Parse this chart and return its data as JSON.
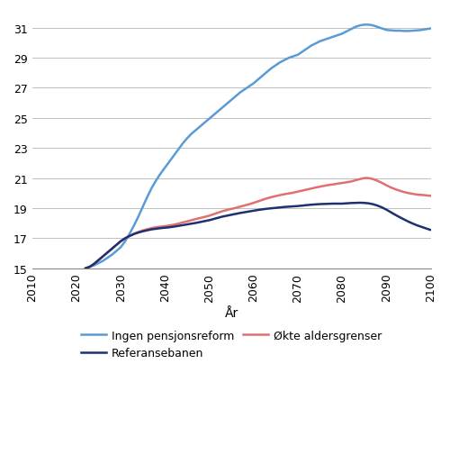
{
  "title": "",
  "xlabel": "År",
  "ylabel": "",
  "xlim": [
    2010,
    2100
  ],
  "ylim": [
    15,
    32
  ],
  "yticks": [
    15,
    17,
    19,
    21,
    23,
    25,
    27,
    29,
    31
  ],
  "xticks": [
    2010,
    2020,
    2030,
    2040,
    2050,
    2060,
    2070,
    2080,
    2090,
    2100
  ],
  "background_color": "#ffffff",
  "grid_color": "#c0c0c0",
  "series": {
    "ingen_pensjonsreform": {
      "label": "Ingen pensjonsreform",
      "color": "#5B9BD5",
      "linewidth": 1.8,
      "x": [
        2022,
        2023,
        2024,
        2025,
        2026,
        2027,
        2028,
        2029,
        2030,
        2031,
        2032,
        2033,
        2034,
        2035,
        2036,
        2037,
        2038,
        2039,
        2040,
        2041,
        2042,
        2043,
        2044,
        2045,
        2046,
        2047,
        2048,
        2049,
        2050,
        2051,
        2052,
        2053,
        2054,
        2055,
        2056,
        2057,
        2058,
        2059,
        2060,
        2061,
        2062,
        2063,
        2064,
        2065,
        2066,
        2067,
        2068,
        2069,
        2070,
        2071,
        2072,
        2073,
        2074,
        2075,
        2076,
        2077,
        2078,
        2079,
        2080,
        2081,
        2082,
        2083,
        2084,
        2085,
        2086,
        2087,
        2088,
        2089,
        2090,
        2091,
        2092,
        2093,
        2094,
        2095,
        2096,
        2097,
        2098,
        2099,
        2100
      ],
      "y": [
        15.0,
        15.1,
        15.2,
        15.35,
        15.5,
        15.7,
        15.9,
        16.15,
        16.4,
        16.8,
        17.3,
        17.85,
        18.45,
        19.1,
        19.75,
        20.35,
        20.85,
        21.3,
        21.7,
        22.1,
        22.5,
        22.9,
        23.3,
        23.65,
        23.95,
        24.2,
        24.45,
        24.7,
        24.95,
        25.2,
        25.45,
        25.7,
        25.95,
        26.2,
        26.45,
        26.7,
        26.9,
        27.1,
        27.3,
        27.55,
        27.8,
        28.05,
        28.3,
        28.5,
        28.7,
        28.85,
        29.0,
        29.1,
        29.2,
        29.4,
        29.6,
        29.8,
        29.95,
        30.1,
        30.2,
        30.3,
        30.4,
        30.5,
        30.6,
        30.75,
        30.9,
        31.05,
        31.15,
        31.2,
        31.2,
        31.15,
        31.05,
        30.95,
        30.85,
        30.82,
        30.8,
        30.8,
        30.78,
        30.78,
        30.8,
        30.82,
        30.85,
        30.9,
        30.95
      ]
    },
    "okte_aldersgrenser": {
      "label": "Økte aldersgrenser",
      "color": "#E07070",
      "linewidth": 1.8,
      "x": [
        2022,
        2023,
        2024,
        2025,
        2026,
        2027,
        2028,
        2029,
        2030,
        2031,
        2032,
        2033,
        2034,
        2035,
        2036,
        2037,
        2038,
        2039,
        2040,
        2041,
        2042,
        2043,
        2044,
        2045,
        2046,
        2047,
        2048,
        2049,
        2050,
        2051,
        2052,
        2053,
        2054,
        2055,
        2056,
        2057,
        2058,
        2059,
        2060,
        2061,
        2062,
        2063,
        2064,
        2065,
        2066,
        2067,
        2068,
        2069,
        2070,
        2071,
        2072,
        2073,
        2074,
        2075,
        2076,
        2077,
        2078,
        2079,
        2080,
        2081,
        2082,
        2083,
        2084,
        2085,
        2086,
        2087,
        2088,
        2089,
        2090,
        2091,
        2092,
        2093,
        2094,
        2095,
        2096,
        2097,
        2098,
        2099,
        2100
      ],
      "y": [
        15.0,
        15.1,
        15.3,
        15.55,
        15.8,
        16.05,
        16.3,
        16.55,
        16.8,
        17.0,
        17.15,
        17.3,
        17.42,
        17.52,
        17.6,
        17.68,
        17.73,
        17.77,
        17.8,
        17.85,
        17.9,
        17.97,
        18.05,
        18.12,
        18.2,
        18.28,
        18.35,
        18.42,
        18.5,
        18.6,
        18.7,
        18.8,
        18.88,
        18.95,
        19.02,
        19.1,
        19.18,
        19.26,
        19.35,
        19.45,
        19.55,
        19.65,
        19.73,
        19.8,
        19.87,
        19.93,
        19.98,
        20.03,
        20.1,
        20.17,
        20.23,
        20.3,
        20.37,
        20.43,
        20.49,
        20.54,
        20.58,
        20.63,
        20.67,
        20.72,
        20.77,
        20.85,
        20.93,
        21.0,
        21.0,
        20.93,
        20.82,
        20.68,
        20.52,
        20.38,
        20.26,
        20.16,
        20.07,
        20.0,
        19.95,
        19.9,
        19.88,
        19.85,
        19.82
      ]
    },
    "referansebanen": {
      "label": "Referansebanen",
      "color": "#1F3070",
      "linewidth": 1.8,
      "x": [
        2022,
        2023,
        2024,
        2025,
        2026,
        2027,
        2028,
        2029,
        2030,
        2031,
        2032,
        2033,
        2034,
        2035,
        2036,
        2037,
        2038,
        2039,
        2040,
        2041,
        2042,
        2043,
        2044,
        2045,
        2046,
        2047,
        2048,
        2049,
        2050,
        2051,
        2052,
        2053,
        2054,
        2055,
        2056,
        2057,
        2058,
        2059,
        2060,
        2061,
        2062,
        2063,
        2064,
        2065,
        2066,
        2067,
        2068,
        2069,
        2070,
        2071,
        2072,
        2073,
        2074,
        2075,
        2076,
        2077,
        2078,
        2079,
        2080,
        2081,
        2082,
        2083,
        2084,
        2085,
        2086,
        2087,
        2088,
        2089,
        2090,
        2091,
        2092,
        2093,
        2094,
        2095,
        2096,
        2097,
        2098,
        2099,
        2100
      ],
      "y": [
        15.0,
        15.1,
        15.3,
        15.55,
        15.8,
        16.05,
        16.3,
        16.55,
        16.8,
        17.0,
        17.15,
        17.28,
        17.38,
        17.46,
        17.53,
        17.59,
        17.63,
        17.67,
        17.7,
        17.73,
        17.77,
        17.82,
        17.87,
        17.92,
        17.97,
        18.02,
        18.08,
        18.14,
        18.2,
        18.28,
        18.36,
        18.44,
        18.5,
        18.56,
        18.62,
        18.68,
        18.73,
        18.78,
        18.83,
        18.88,
        18.92,
        18.96,
        18.99,
        19.02,
        19.05,
        19.08,
        19.1,
        19.12,
        19.14,
        19.17,
        19.2,
        19.23,
        19.25,
        19.27,
        19.28,
        19.29,
        19.3,
        19.3,
        19.3,
        19.32,
        19.34,
        19.35,
        19.36,
        19.35,
        19.32,
        19.26,
        19.17,
        19.05,
        18.9,
        18.73,
        18.56,
        18.4,
        18.25,
        18.1,
        17.97,
        17.85,
        17.75,
        17.65,
        17.55
      ]
    }
  },
  "legend_order": [
    "ingen_pensjonsreform",
    "referansebanen",
    "okte_aldersgrenser"
  ],
  "legend_labels": {
    "ingen_pensjonsreform": "Ingen pensjonsreform",
    "referansebanen": "Referansebanen",
    "okte_aldersgrenser": "Økte aldersgrenser"
  }
}
